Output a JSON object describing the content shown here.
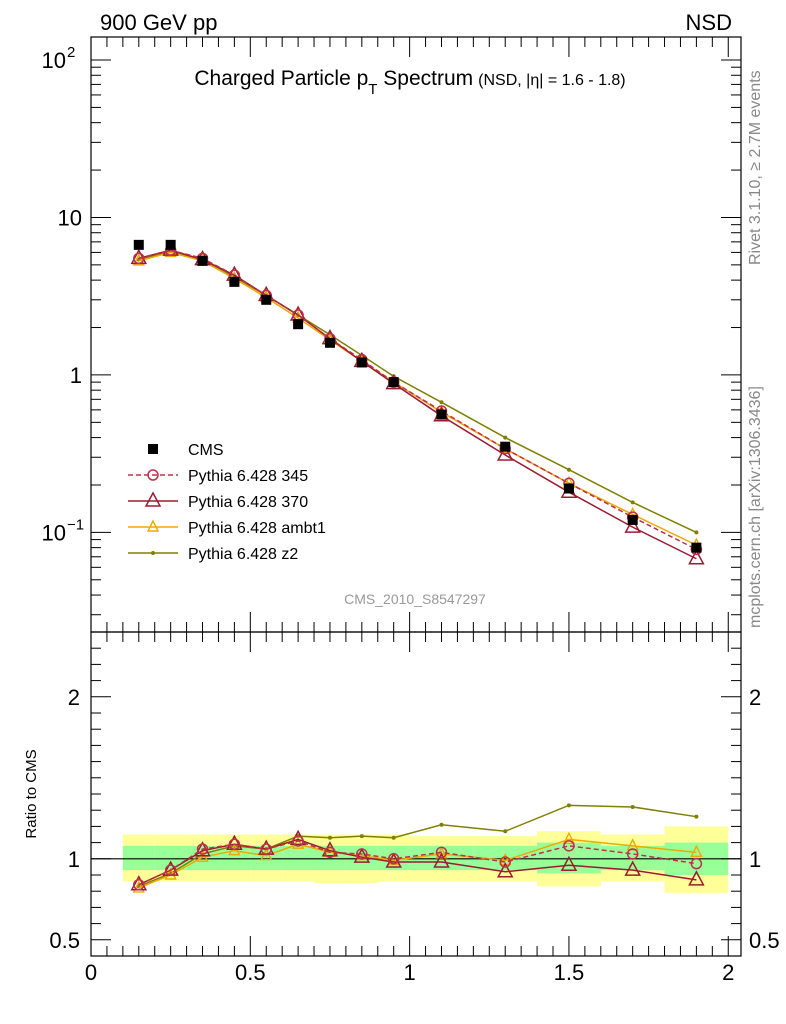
{
  "header": {
    "left": "900 GeV pp",
    "right": "NSD",
    "title_main": "Charged Particle p",
    "title_sub": "T",
    "title_main2": " Spectrum",
    "title_small": "(NSD, |η| = 1.6 - 1.8)",
    "watermark": "CMS_2010_S8547297",
    "side_rivet": "Rivet 3.1.10, ≥ 2.7M events",
    "side_mcplots": "mcplots.cern.ch [arXiv:1306.3436]"
  },
  "ratio_ylabel": "Ratio to CMS",
  "colors": {
    "cms": "#000000",
    "p345": "#c0304a",
    "p370": "#9b1b30",
    "ambt1": "#f0a800",
    "z2": "#808000",
    "band_inner": "#99ff99",
    "band_outer": "#ffff99"
  },
  "chart_data": [
    {
      "type": "scatter",
      "yscale": "log",
      "xlim": [
        0,
        2.04
      ],
      "ylim": [
        0.0233,
        140
      ],
      "y_ticks": [
        {
          "value": 0.1,
          "label": "10",
          "exp": "−1"
        },
        {
          "value": 1,
          "label": "1",
          "exp": ""
        },
        {
          "value": 10,
          "label": "10",
          "exp": ""
        },
        {
          "value": 100,
          "label": "10",
          "exp": "2"
        }
      ],
      "legend": {
        "placement": "lower-left",
        "entries": [
          "CMS",
          "Pythia 6.428 345",
          "Pythia 6.428 370",
          "Pythia 6.428 ambt1",
          "Pythia 6.428 z2"
        ]
      },
      "x": [
        0.15,
        0.25,
        0.35,
        0.45,
        0.55,
        0.65,
        0.75,
        0.85,
        0.95,
        1.1,
        1.3,
        1.5,
        1.7,
        1.9
      ],
      "series": [
        {
          "name": "CMS",
          "values": [
            6.7,
            6.7,
            5.3,
            3.9,
            3.0,
            2.1,
            1.6,
            1.2,
            0.9,
            0.56,
            0.35,
            0.19,
            0.12,
            0.08
          ]
        },
        {
          "name": "Pythia 6.428 345",
          "values": [
            5.5,
            6.2,
            5.5,
            4.3,
            3.2,
            2.4,
            1.7,
            1.25,
            0.9,
            0.59,
            0.34,
            0.205,
            0.125,
            0.078
          ]
        },
        {
          "name": "Pythia 6.428 370",
          "values": [
            5.5,
            6.2,
            5.4,
            4.3,
            3.2,
            2.4,
            1.7,
            1.22,
            0.88,
            0.55,
            0.31,
            0.18,
            0.108,
            0.068
          ]
        },
        {
          "name": "Pythia 6.428 ambt1",
          "values": [
            5.3,
            6.0,
            5.3,
            4.1,
            3.1,
            2.3,
            1.67,
            1.22,
            0.9,
            0.58,
            0.34,
            0.205,
            0.13,
            0.083
          ]
        },
        {
          "name": "Pythia 6.428 z2",
          "values": [
            5.4,
            6.1,
            5.4,
            4.2,
            3.2,
            2.4,
            1.8,
            1.33,
            0.98,
            0.67,
            0.4,
            0.25,
            0.155,
            0.1
          ]
        }
      ]
    },
    {
      "type": "line",
      "xlim": [
        0,
        2.04
      ],
      "ylim": [
        0.4,
        2.4
      ],
      "x_ticks": [
        0,
        0.5,
        1,
        1.5,
        2
      ],
      "x_tick_labels": [
        "0",
        "0.5",
        "1",
        "1.5",
        "2"
      ],
      "y_ticks": [
        0.5,
        1,
        2
      ],
      "y_tick_labels": [
        "0.5",
        "1",
        "2"
      ],
      "ylabel": "Ratio to CMS",
      "bands": [
        {
          "x0": 0.1,
          "x1": 0.2,
          "inner": [
            0.93,
            1.08
          ],
          "outer": [
            0.86,
            1.15
          ]
        },
        {
          "x0": 0.2,
          "x1": 0.3,
          "inner": [
            0.93,
            1.08
          ],
          "outer": [
            0.86,
            1.15
          ]
        },
        {
          "x0": 0.3,
          "x1": 0.4,
          "inner": [
            0.93,
            1.08
          ],
          "outer": [
            0.86,
            1.15
          ]
        },
        {
          "x0": 0.4,
          "x1": 0.5,
          "inner": [
            0.93,
            1.08
          ],
          "outer": [
            0.86,
            1.15
          ]
        },
        {
          "x0": 0.5,
          "x1": 0.6,
          "inner": [
            0.93,
            1.08
          ],
          "outer": [
            0.86,
            1.15
          ]
        },
        {
          "x0": 0.6,
          "x1": 0.7,
          "inner": [
            0.93,
            1.08
          ],
          "outer": [
            0.86,
            1.15
          ]
        },
        {
          "x0": 0.7,
          "x1": 0.8,
          "inner": [
            0.93,
            1.08
          ],
          "outer": [
            0.85,
            1.15
          ]
        },
        {
          "x0": 0.8,
          "x1": 0.9,
          "inner": [
            0.93,
            1.08
          ],
          "outer": [
            0.85,
            1.15
          ]
        },
        {
          "x0": 0.9,
          "x1": 1.0,
          "inner": [
            0.93,
            1.08
          ],
          "outer": [
            0.86,
            1.15
          ]
        },
        {
          "x0": 1.0,
          "x1": 1.2,
          "inner": [
            0.93,
            1.08
          ],
          "outer": [
            0.86,
            1.14
          ]
        },
        {
          "x0": 1.2,
          "x1": 1.4,
          "inner": [
            0.93,
            1.08
          ],
          "outer": [
            0.86,
            1.14
          ]
        },
        {
          "x0": 1.4,
          "x1": 1.6,
          "inner": [
            0.91,
            1.1
          ],
          "outer": [
            0.83,
            1.17
          ]
        },
        {
          "x0": 1.6,
          "x1": 1.8,
          "inner": [
            0.93,
            1.08
          ],
          "outer": [
            0.86,
            1.15
          ]
        },
        {
          "x0": 1.8,
          "x1": 2.0,
          "inner": [
            0.9,
            1.1
          ],
          "outer": [
            0.79,
            1.2
          ]
        }
      ],
      "x": [
        0.15,
        0.25,
        0.35,
        0.45,
        0.55,
        0.65,
        0.75,
        0.85,
        0.95,
        1.1,
        1.3,
        1.5,
        1.7,
        1.9
      ],
      "series": [
        {
          "name": "Pythia 6.428 345",
          "values": [
            0.84,
            0.93,
            1.06,
            1.09,
            1.06,
            1.11,
            1.04,
            1.03,
            1.0,
            1.04,
            0.98,
            1.08,
            1.03,
            0.97
          ]
        },
        {
          "name": "Pythia 6.428 370",
          "values": [
            0.84,
            0.93,
            1.05,
            1.09,
            1.06,
            1.12,
            1.05,
            1.01,
            0.98,
            0.98,
            0.92,
            0.96,
            0.93,
            0.87
          ]
        },
        {
          "name": "Pythia 6.428 ambt1",
          "values": [
            0.82,
            0.9,
            1.01,
            1.05,
            1.02,
            1.09,
            1.04,
            1.02,
            0.99,
            1.03,
            0.99,
            1.12,
            1.08,
            1.04
          ]
        },
        {
          "name": "Pythia 6.428 z2",
          "values": [
            0.83,
            0.91,
            1.03,
            1.08,
            1.06,
            1.14,
            1.13,
            1.14,
            1.13,
            1.21,
            1.17,
            1.33,
            1.32,
            1.26
          ]
        }
      ]
    }
  ]
}
